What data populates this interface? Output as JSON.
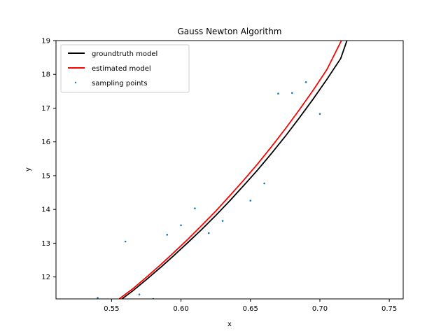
{
  "chart_data": {
    "type": "line",
    "title": "Gauss Newton Algorithm",
    "xlabel": "x",
    "ylabel": "y",
    "xlim": [
      0.51,
      0.76
    ],
    "ylim": [
      11.35,
      19.0
    ],
    "xticks": [
      0.55,
      0.6,
      0.65,
      0.7,
      0.75
    ],
    "xtick_labels": [
      "0.55",
      "0.60",
      "0.65",
      "0.70",
      "0.75"
    ],
    "yticks": [
      12,
      13,
      14,
      15,
      16,
      17,
      18,
      19
    ],
    "ytick_labels": [
      "12",
      "13",
      "14",
      "15",
      "16",
      "17",
      "18",
      "19"
    ],
    "grid": false,
    "legend_position": "upper left",
    "series": [
      {
        "name": "groundtruth model",
        "kind": "line",
        "color": "#000000",
        "x": [
          0.5575,
          0.565,
          0.575,
          0.585,
          0.595,
          0.605,
          0.615,
          0.625,
          0.635,
          0.645,
          0.655,
          0.665,
          0.675,
          0.685,
          0.695,
          0.705,
          0.715,
          0.7195
        ],
        "y": [
          11.35,
          11.58,
          11.92,
          12.27,
          12.64,
          13.02,
          13.41,
          13.82,
          14.25,
          14.7,
          15.16,
          15.65,
          16.16,
          16.7,
          17.26,
          17.85,
          18.47,
          19.0
        ]
      },
      {
        "name": "estimated model",
        "kind": "line",
        "color": "#ff0000",
        "x": [
          0.5555,
          0.565,
          0.575,
          0.585,
          0.595,
          0.605,
          0.615,
          0.625,
          0.635,
          0.645,
          0.655,
          0.665,
          0.675,
          0.685,
          0.695,
          0.705,
          0.7155
        ],
        "y": [
          11.35,
          11.64,
          11.99,
          12.35,
          12.73,
          13.12,
          13.53,
          13.95,
          14.4,
          14.86,
          15.34,
          15.85,
          16.38,
          16.94,
          17.52,
          18.14,
          19.0
        ]
      },
      {
        "name": "sampling points",
        "kind": "scatter",
        "color": "#1f77b4",
        "x": [
          0.54,
          0.56,
          0.57,
          0.58,
          0.59,
          0.6,
          0.61,
          0.62,
          0.63,
          0.65,
          0.66,
          0.67,
          0.68,
          0.69,
          0.7
        ],
        "y": [
          11.38,
          13.05,
          11.48,
          11.35,
          13.25,
          13.53,
          14.03,
          13.3,
          13.66,
          14.26,
          14.77,
          17.43,
          17.45,
          17.77,
          16.83
        ]
      }
    ]
  }
}
